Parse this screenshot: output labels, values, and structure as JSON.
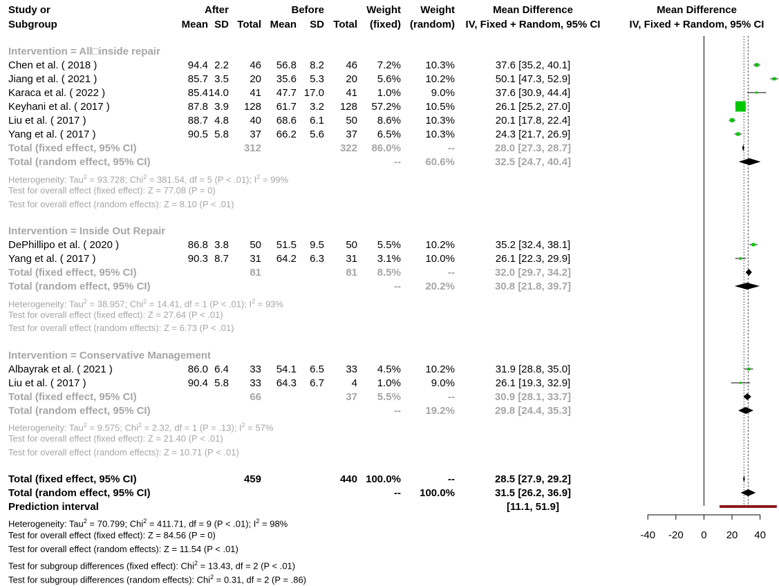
{
  "header": {
    "study_line1": "Study or",
    "study_line2": "Subgroup",
    "after": "After",
    "before": "Before",
    "mean": "Mean",
    "sd": "SD",
    "total": "Total",
    "weight_line1": "Weight",
    "fixed": "(fixed)",
    "random": "(random)",
    "md_title": "Mean Difference",
    "md_sub": "IV, Fixed + Random, 95% CI"
  },
  "groups": [
    {
      "title": "Intervention = All□inside repair",
      "studies": [
        {
          "name": "Chen et al. ( 2018 )",
          "mean_after": "94.4",
          "sd_after": "2.2",
          "n_after": "46",
          "mean_before": "56.8",
          "sd_before": "8.2",
          "n_before": "46",
          "w_fixed": "7.2%",
          "w_random": "10.3%",
          "ci": "37.6 [35.2, 40.1]"
        },
        {
          "name": "Jiang et al. ( 2021 )",
          "mean_after": "85.7",
          "sd_after": "3.5",
          "n_after": "20",
          "mean_before": "35.6",
          "sd_before": "5.3",
          "n_before": "20",
          "w_fixed": "5.6%",
          "w_random": "10.2%",
          "ci": "50.1 [47.3, 52.9]"
        },
        {
          "name": "Karaca et al. ( 2022 )",
          "mean_after": "85.4",
          "sd_after": "14.0",
          "n_after": "41",
          "mean_before": "47.7",
          "sd_before": "17.0",
          "n_before": "41",
          "w_fixed": "1.0%",
          "w_random": "9.0%",
          "ci": "37.6 [30.9, 44.4]"
        },
        {
          "name": "Keyhani et al. ( 2017 )",
          "mean_after": "87.8",
          "sd_after": "3.9",
          "n_after": "128",
          "mean_before": "61.7",
          "sd_before": "3.2",
          "n_before": "128",
          "w_fixed": "57.2%",
          "w_random": "10.5%",
          "ci": "26.1 [25.2, 27.0]"
        },
        {
          "name": "Liu et al. ( 2017 )",
          "mean_after": "88.7",
          "sd_after": "4.8",
          "n_after": "40",
          "mean_before": "68.6",
          "sd_before": "6.1",
          "n_before": "50",
          "w_fixed": "8.6%",
          "w_random": "10.3%",
          "ci": "20.1 [17.8, 22.4]"
        },
        {
          "name": "Yang et al. ( 2017 )",
          "mean_after": "90.5",
          "sd_after": "5.8",
          "n_after": "37",
          "mean_before": "66.2",
          "sd_before": "5.6",
          "n_before": "37",
          "w_fixed": "6.5%",
          "w_random": "10.3%",
          "ci": "24.3 [21.7, 26.9]"
        }
      ],
      "fixed_label": "Total (fixed effect, 95% CI)",
      "fixed_n_after": "312",
      "fixed_n_before": "322",
      "fixed_w_fixed": "86.0%",
      "fixed_w_random": "--",
      "fixed_ci": "28.0 [27.3, 28.7]",
      "random_label": "Total (random effect, 95% CI)",
      "random_w_fixed": "--",
      "random_w_random": "60.6%",
      "random_ci": "32.5 [24.7, 40.4]",
      "heterogeneity": {
        "a": "Heterogeneity: Tau",
        "b": " = 93.728; Chi",
        "c": " = 381.54, df = 5 (P < .01); I",
        "d": " = 99%"
      },
      "test_fixed": "Test for overall effect (fixed effect): Z = 77.08 (P = 0)",
      "test_random": "Test for overall effect (random effects): Z = 8.10 (P < .01)"
    },
    {
      "title": "Intervention = Inside Out Repair",
      "studies": [
        {
          "name": "DePhillipo et al. ( 2020 )",
          "mean_after": "86.8",
          "sd_after": "3.8",
          "n_after": "50",
          "mean_before": "51.5",
          "sd_before": "9.5",
          "n_before": "50",
          "w_fixed": "5.5%",
          "w_random": "10.2%",
          "ci": "35.2 [32.4, 38.1]"
        },
        {
          "name": "Yang et al. ( 2017 )",
          "mean_after": "90.3",
          "sd_after": "8.7",
          "n_after": "31",
          "mean_before": "64.2",
          "sd_before": "6.3",
          "n_before": "31",
          "w_fixed": "3.1%",
          "w_random": "10.0%",
          "ci": "26.1 [22.3, 29.9]"
        }
      ],
      "fixed_label": "Total (fixed effect, 95% CI)",
      "fixed_n_after": "81",
      "fixed_n_before": "81",
      "fixed_w_fixed": "8.5%",
      "fixed_w_random": "--",
      "fixed_ci": "32.0 [29.7, 34.2]",
      "random_label": "Total (random effect, 95% CI)",
      "random_w_fixed": "--",
      "random_w_random": "20.2%",
      "random_ci": "30.8 [21.8, 39.7]",
      "heterogeneity": {
        "a": "Heterogeneity: Tau",
        "b": " = 38.957; Chi",
        "c": " = 14.41, df = 1 (P < .01); I",
        "d": " = 93%"
      },
      "test_fixed": "Test for overall effect (fixed effect): Z = 27.64 (P < .01)",
      "test_random": "Test for overall effect (random effects): Z = 6.73 (P < .01)"
    },
    {
      "title": "Intervention = Conservative Management",
      "studies": [
        {
          "name": "Albayrak et al. ( 2021 )",
          "mean_after": "86.0",
          "sd_after": "6.4",
          "n_after": "33",
          "mean_before": "54.1",
          "sd_before": "6.5",
          "n_before": "33",
          "w_fixed": "4.5%",
          "w_random": "10.2%",
          "ci": "31.9 [28.8, 35.0]"
        },
        {
          "name": "Liu et al. ( 2017 )",
          "mean_after": "90.4",
          "sd_after": "5.8",
          "n_after": "33",
          "mean_before": "64.3",
          "sd_before": "6.7",
          "n_before": "4",
          "w_fixed": "1.0%",
          "w_random": "9.0%",
          "ci": "26.1 [19.3, 32.9]"
        }
      ],
      "fixed_label": "Total (fixed effect, 95% CI)",
      "fixed_n_after": "66",
      "fixed_n_before": "37",
      "fixed_w_fixed": "5.5%",
      "fixed_w_random": "--",
      "fixed_ci": "30.9 [28.1, 33.7]",
      "random_label": "Total (random effect, 95% CI)",
      "random_w_fixed": "--",
      "random_w_random": "19.2%",
      "random_ci": "29.8 [24.4, 35.3]",
      "heterogeneity": {
        "a": "Heterogeneity: Tau",
        "b": " = 9.575; Chi",
        "c": " = 2.32, df = 1 (P = .13); I",
        "d": " = 57%"
      },
      "test_fixed": "Test for overall effect (fixed effect): Z = 21.40 (P < .01)",
      "test_random": "Test for overall effect (random effects): Z = 10.71 (P < .01)"
    }
  ],
  "overall": {
    "fixed_label": "Total (fixed effect, 95% CI)",
    "fixed_n_after": "459",
    "fixed_n_before": "440",
    "fixed_w_fixed": "100.0%",
    "fixed_w_random": "--",
    "fixed_ci": "28.5 [27.9, 29.2]",
    "random_label": "Total (random effect, 95% CI)",
    "random_w_fixed": "--",
    "random_w_random": "100.0%",
    "random_ci": "31.5 [26.2, 36.9]",
    "pi_label": "Prediction interval",
    "pi_ci": "[11.1, 51.9]",
    "heterogeneity": {
      "a": "Heterogeneity: Tau",
      "b": " = 70.799; Chi",
      "c": " = 411.71, df = 9 (P < .01); I",
      "d": " = 98%"
    },
    "test_fixed": "Test for overall effect (fixed effect): Z = 84.56 (P = 0)",
    "test_random": "Test for overall effect (random effects): Z = 11.54 (P < .01)",
    "subgroup_fixed": {
      "a": "Test for subgroup differences (fixed effect): Chi",
      "b": " = 13.43, df = 2 (P < .01)"
    },
    "subgroup_random": {
      "a": "Test for subgroup differences (random effects): Chi",
      "b": " = 0.31, df = 2 (P = .86)"
    },
    "sup2": "2"
  },
  "chart_data": {
    "type": "forest",
    "xlim": [
      -48,
      52
    ],
    "xticks": [
      -40,
      -20,
      0,
      20,
      40
    ],
    "xtick_labels": [
      "-40",
      "-20",
      "0",
      "20",
      "40"
    ],
    "fixed_line": 28.5,
    "random_line": 31.5,
    "colors": {
      "square": "#00c800",
      "diamond": "#000000",
      "prediction": "#8b1a1a",
      "axis": "#000000"
    },
    "studies": [
      {
        "estimate": 37.6,
        "lower": 35.2,
        "upper": 40.1,
        "weight": 7.2
      },
      {
        "estimate": 50.1,
        "lower": 47.3,
        "upper": 52.9,
        "weight": 5.6
      },
      {
        "estimate": 37.6,
        "lower": 30.9,
        "upper": 44.4,
        "weight": 1.0
      },
      {
        "estimate": 26.1,
        "lower": 25.2,
        "upper": 27.0,
        "weight": 57.2
      },
      {
        "estimate": 20.1,
        "lower": 17.8,
        "upper": 22.4,
        "weight": 8.6
      },
      {
        "estimate": 24.3,
        "lower": 21.7,
        "upper": 26.9,
        "weight": 6.5
      },
      {
        "estimate": 35.2,
        "lower": 32.4,
        "upper": 38.1,
        "weight": 5.5
      },
      {
        "estimate": 26.1,
        "lower": 22.3,
        "upper": 29.9,
        "weight": 3.1
      },
      {
        "estimate": 31.9,
        "lower": 28.8,
        "upper": 35.0,
        "weight": 4.5
      },
      {
        "estimate": 26.1,
        "lower": 19.3,
        "upper": 32.9,
        "weight": 1.0
      }
    ],
    "diamonds": [
      {
        "estimate": 28.0,
        "lower": 27.3,
        "upper": 28.7
      },
      {
        "estimate": 32.5,
        "lower": 24.7,
        "upper": 40.4
      },
      {
        "estimate": 32.0,
        "lower": 29.7,
        "upper": 34.2
      },
      {
        "estimate": 30.8,
        "lower": 21.8,
        "upper": 39.7
      },
      {
        "estimate": 30.9,
        "lower": 28.1,
        "upper": 33.7
      },
      {
        "estimate": 29.8,
        "lower": 24.4,
        "upper": 35.3
      },
      {
        "estimate": 28.5,
        "lower": 27.9,
        "upper": 29.2
      },
      {
        "estimate": 31.5,
        "lower": 26.2,
        "upper": 36.9
      }
    ],
    "prediction_interval": {
      "lower": 11.1,
      "upper": 51.9
    }
  }
}
